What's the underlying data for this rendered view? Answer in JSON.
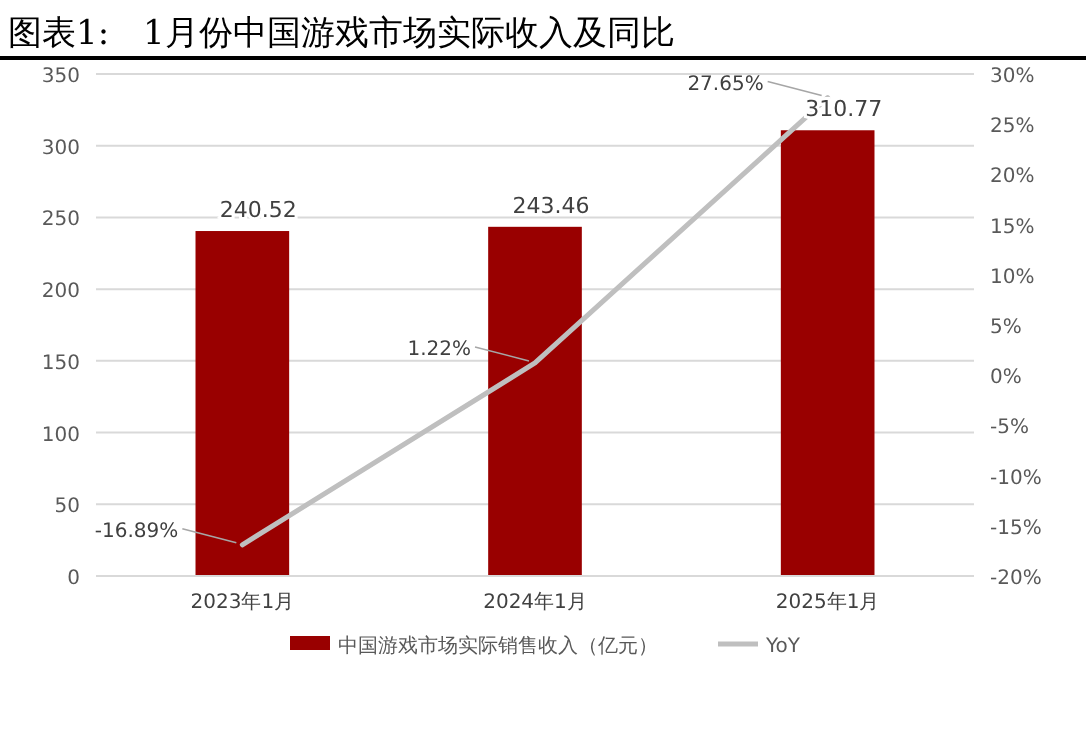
{
  "chart_data": {
    "type": "bar",
    "title": "图表1:　1月份中国游戏市场实际收入及同比",
    "categories": [
      "2023年1月",
      "2024年1月",
      "2025年1月"
    ],
    "series": [
      {
        "name": "中国游戏市场实际销售收入（亿元）",
        "color": "#990000",
        "values": [
          240.52,
          243.46,
          310.77
        ],
        "value_labels": [
          "240.52",
          "243.46",
          "310.77"
        ]
      },
      {
        "name": "YoY",
        "type": "line",
        "axis": "y2",
        "color": "#bfbfbf",
        "values": [
          -16.89,
          1.22,
          27.65
        ],
        "value_labels": [
          "-16.89%",
          "1.22%",
          "27.65%"
        ]
      }
    ],
    "ylim": [
      0,
      350
    ],
    "yticks": [
      0,
      50,
      100,
      150,
      200,
      250,
      300,
      350
    ],
    "y2lim": [
      -20,
      30
    ],
    "y2ticks": [
      {
        "value": -20,
        "label": "-20%"
      },
      {
        "value": -15,
        "label": "-15%"
      },
      {
        "value": -10,
        "label": "-10%"
      },
      {
        "value": -5,
        "label": "-5%"
      },
      {
        "value": 0,
        "label": "0%"
      },
      {
        "value": 5,
        "label": "5%"
      },
      {
        "value": 10,
        "label": "10%"
      },
      {
        "value": 15,
        "label": "15%"
      },
      {
        "value": 20,
        "label": "20%"
      },
      {
        "value": 25,
        "label": "25%"
      },
      {
        "value": 30,
        "label": "30%"
      }
    ],
    "grid": "y",
    "legend": "bottom",
    "marker": "none",
    "line_style": "solid"
  }
}
